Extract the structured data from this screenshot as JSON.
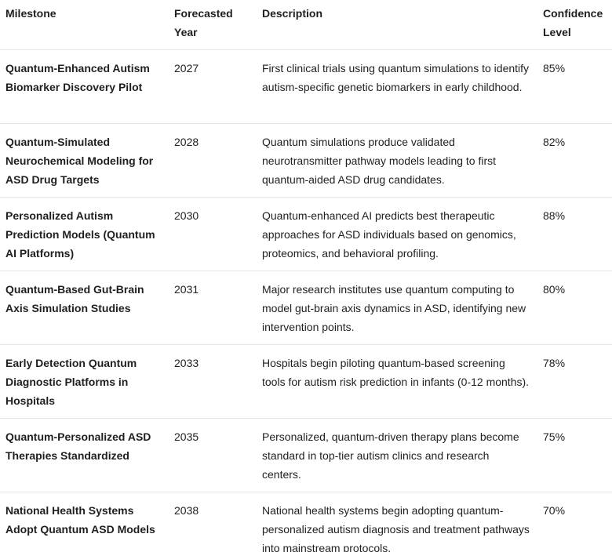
{
  "table": {
    "header": [
      "Milestone",
      "Forecasted Year",
      "Description",
      "Confidence Level"
    ],
    "rows": [
      [
        "Quantum-Enhanced Autism Biomarker Discovery Pilot",
        "2027",
        "First clinical trials using quantum simulations to identify autism-specific genetic biomarkers in early childhood.",
        "85%"
      ],
      [
        "Quantum-Simulated Neurochemical Modeling for ASD Drug Targets",
        "2028",
        "Quantum simulations produce validated neurotransmitter pathway models leading to first quantum-aided ASD drug candidates.",
        "82%"
      ],
      [
        "Personalized Autism Prediction Models (Quantum AI Platforms)",
        "2030",
        "Quantum-enhanced AI predicts best therapeutic approaches for ASD individuals based on genomics, proteomics, and behavioral profiling.",
        "88%"
      ],
      [
        "Quantum-Based Gut-Brain Axis Simulation Studies",
        "2031",
        "Major research institutes use quantum computing to model gut-brain axis dynamics in ASD, identifying new intervention points.",
        "80%"
      ],
      [
        "Early Detection Quantum Diagnostic Platforms in Hospitals",
        "2033",
        "Hospitals begin piloting quantum-based screening tools for autism risk prediction in infants (0-12 months).",
        "78%"
      ],
      [
        "Quantum-Personalized ASD Therapies Standardized",
        "2035",
        "Personalized, quantum-driven therapy plans become standard in top-tier autism clinics and research centers.",
        "75%"
      ],
      [
        "National Health Systems Adopt Quantum ASD Models",
        "2038",
        "National health systems begin adopting quantum-personalized autism diagnosis and treatment pathways into mainstream protocols.",
        "70%"
      ]
    ]
  }
}
